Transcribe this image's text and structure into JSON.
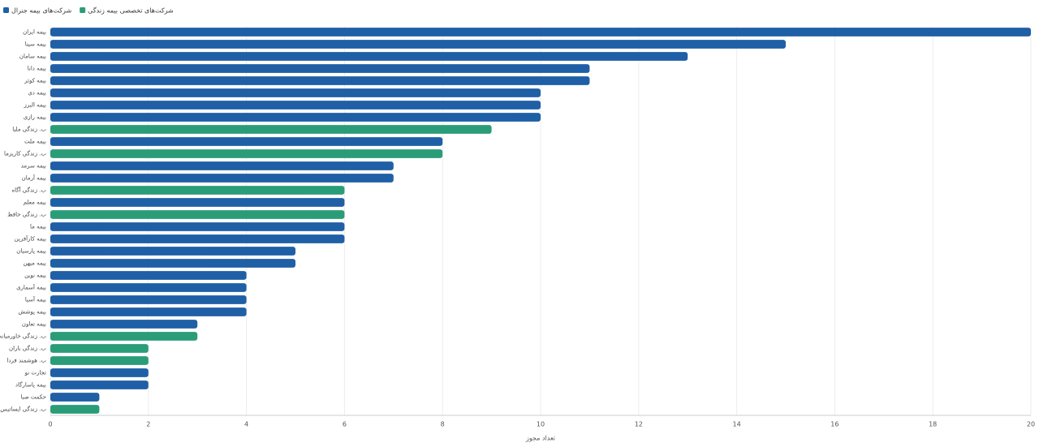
{
  "chart_data": {
    "type": "bar",
    "orientation": "horizontal",
    "x_label": "تعداد مجوز",
    "categories": [
      "بیمه ایران",
      "بیمه سینا",
      "بیمه سامان",
      "بیمه دانا",
      "بیمه کوثر",
      "بیمه دی",
      "بیمه البرز",
      "بیمه رازی",
      "ب. زندگی ملیا",
      "بیمه ملت",
      "ب. زندگی کاریزما",
      "بیمه سرمد",
      "بیمه آرمان",
      "ب. زندگی آگاه",
      "بیمه معلم",
      "ب. زندگی حافظ",
      "بیمه ما",
      "بیمه کارآفرین",
      "بیمه پارسیان",
      "بیمه میهن",
      "بیمه نوین",
      "بیمه آسماری",
      "بیمه آسیا",
      "بیمه پوشش",
      "بیمه تعاون",
      "ب. زندگی خاورمیانه",
      "ب. زندگی باران",
      "ب. هوشمند فردا",
      "تجارت نو",
      "بیمه پاسارگاد",
      "حکمت صبا",
      "ب. زندگی ایساتیس"
    ],
    "series": [
      {
        "name": "شرکت‌های بیمه جنرال",
        "color": "#1f5fa6",
        "values": [
          20,
          15,
          13,
          11,
          11,
          10,
          10,
          10,
          null,
          8,
          null,
          7,
          7,
          null,
          6,
          null,
          6,
          6,
          5,
          5,
          4,
          4,
          4,
          4,
          3,
          null,
          null,
          null,
          2,
          2,
          1,
          null
        ]
      },
      {
        "name": "شرکت‌های تخصصی بیمه زندگی",
        "color": "#2a9d78",
        "values": [
          null,
          null,
          null,
          null,
          null,
          null,
          null,
          null,
          9,
          null,
          8,
          null,
          null,
          6,
          null,
          6,
          null,
          null,
          null,
          null,
          null,
          null,
          null,
          null,
          null,
          3,
          2,
          2,
          null,
          null,
          null,
          1
        ]
      }
    ],
    "xlim": [
      0,
      20
    ],
    "xticks": [
      0,
      2,
      4,
      6,
      8,
      10,
      12,
      14,
      16,
      18,
      20
    ],
    "grid": true,
    "legend": "top-left"
  }
}
